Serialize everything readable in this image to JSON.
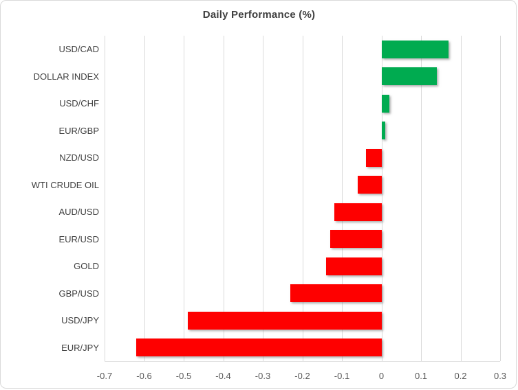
{
  "title": "Daily Performance (%)",
  "chart_data": {
    "type": "bar",
    "orientation": "horizontal",
    "title": "Daily Performance (%)",
    "categories": [
      "USD/CAD",
      "DOLLAR INDEX",
      "USD/CHF",
      "EUR/GBP",
      "NZD/USD",
      "WTI CRUDE OIL",
      "AUD/USD",
      "EUR/USD",
      "GOLD",
      "GBP/USD",
      "USD/JPY",
      "EUR/JPY"
    ],
    "values": [
      0.17,
      0.14,
      0.02,
      0.01,
      -0.04,
      -0.06,
      -0.12,
      -0.13,
      -0.14,
      -0.23,
      -0.49,
      -0.62
    ],
    "xlim": [
      -0.7,
      0.3
    ],
    "xticks": [
      -0.7,
      -0.6,
      -0.5,
      -0.4,
      -0.3,
      -0.2,
      -0.1,
      0,
      0.1,
      0.2,
      0.3
    ],
    "xtick_labels": [
      "-0.7",
      "-0.6",
      "-0.5",
      "-0.4",
      "-0.3",
      "-0.2",
      "-0.1",
      "0",
      "0.1",
      "0.2",
      "0.3"
    ],
    "grid": true,
    "legend": false,
    "colors": {
      "positive": "#00ab50",
      "negative": "#fe0000",
      "gridline": "#d9d9d9",
      "title_text": "#3f3f3f",
      "category_text": "#404040",
      "tick_text": "#595959",
      "frame_border": "#d9d9d9",
      "background": "#ffffff"
    }
  }
}
